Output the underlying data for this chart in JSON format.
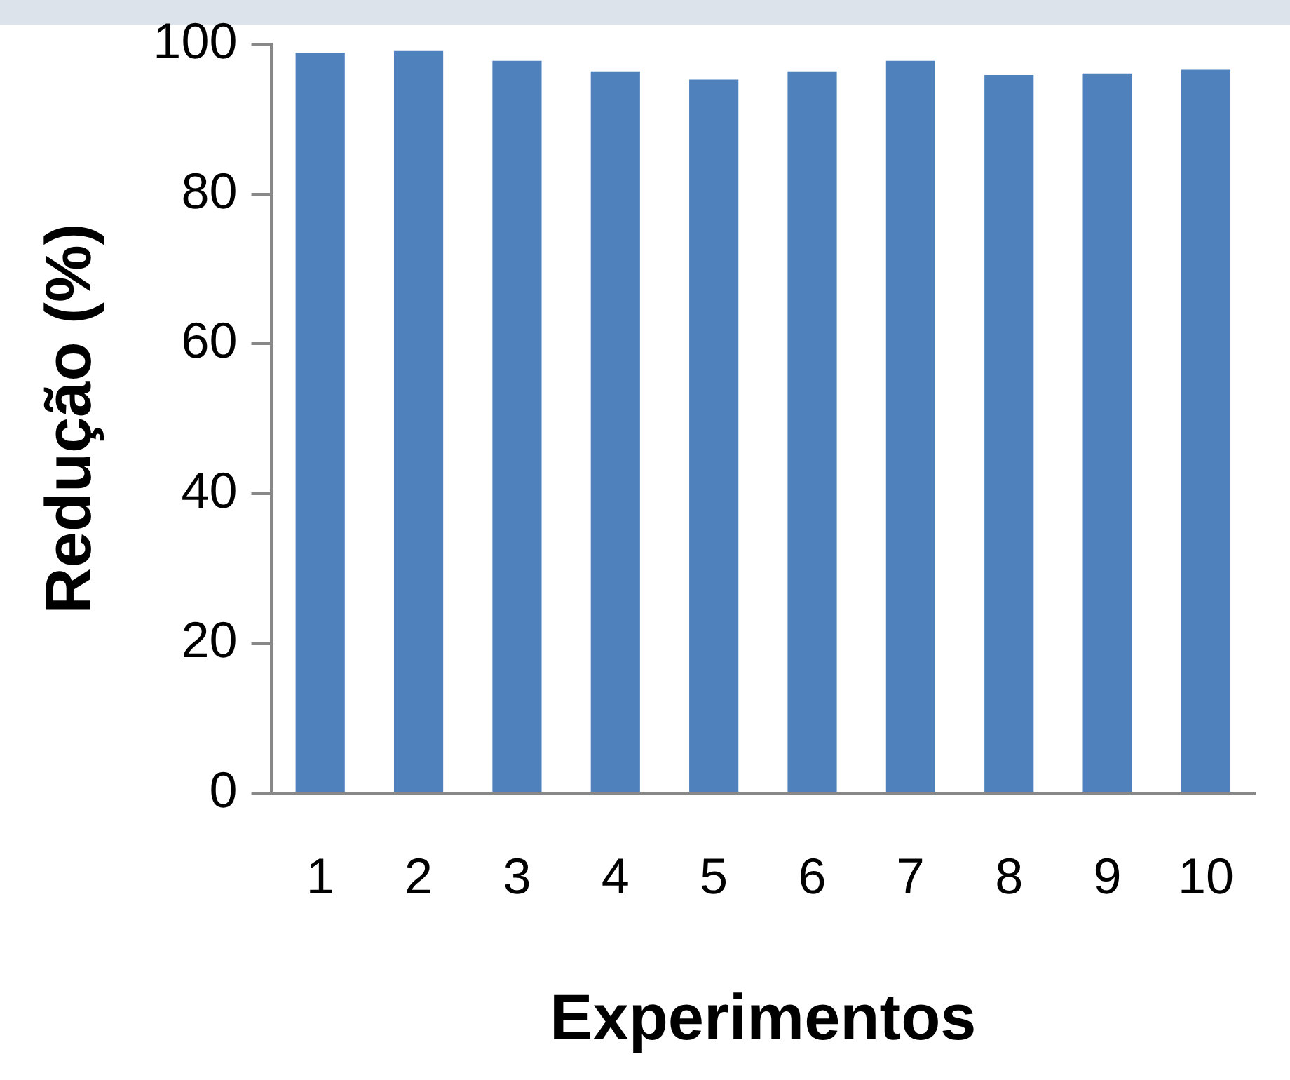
{
  "chart_data": {
    "type": "bar",
    "xlabel": "Experimentos",
    "ylabel": "Redução (%)",
    "categories": [
      "1",
      "2",
      "3",
      "4",
      "5",
      "6",
      "7",
      "8",
      "9",
      "10"
    ],
    "values": [
      98.9,
      99.1,
      97.8,
      96.4,
      95.3,
      96.4,
      97.8,
      95.9,
      96.1,
      96.6
    ],
    "color": "#4f81bd",
    "ylim": [
      0,
      100
    ],
    "yticks": [
      0,
      20,
      40,
      60,
      80,
      100
    ],
    "grid": false,
    "legend": false
  }
}
